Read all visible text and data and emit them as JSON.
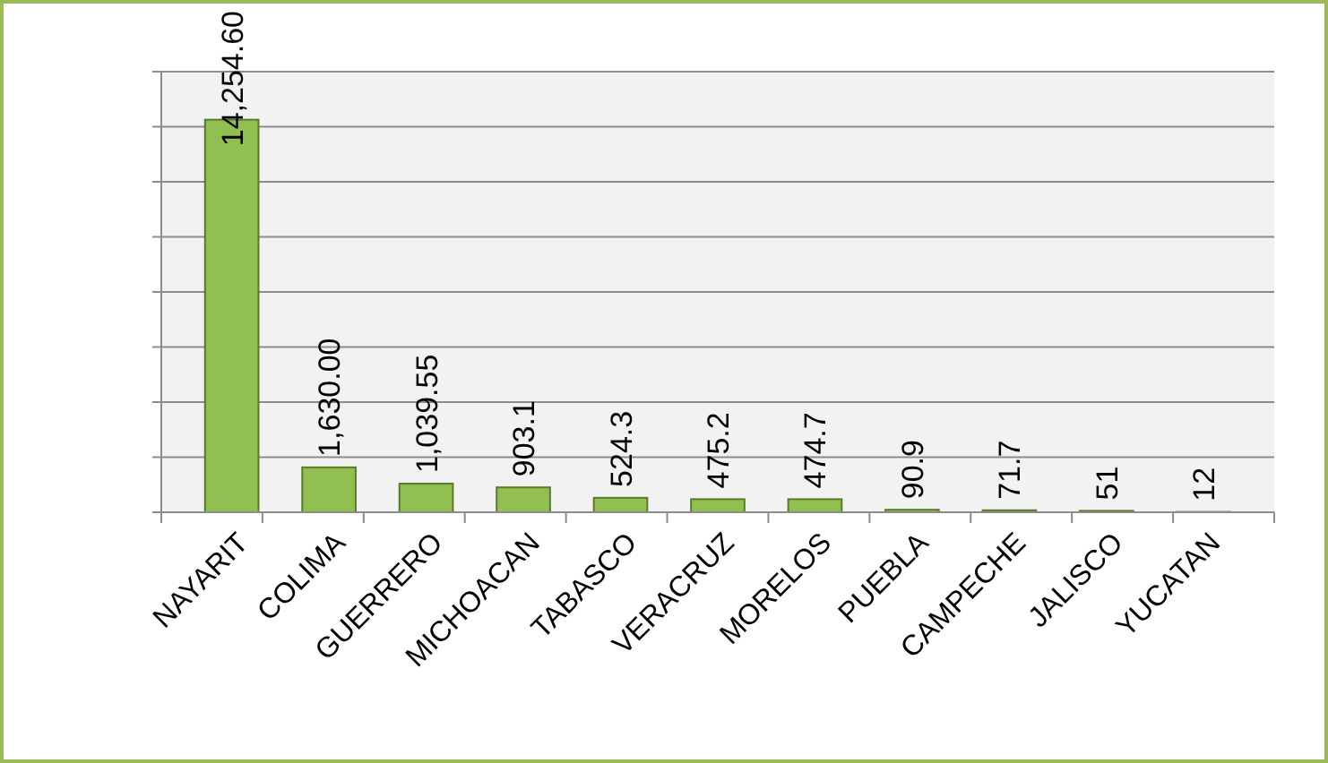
{
  "chart_data": {
    "type": "bar",
    "categories": [
      "NAYARIT",
      "COLIMA",
      "GUERRERO",
      "MICHOACAN",
      "TABASCO",
      "VERACRUZ",
      "MORELOS",
      "PUEBLA",
      "CAMPECHE",
      "JALISCO",
      "YUCATAN"
    ],
    "values": [
      14254.6,
      1630,
      1039.55,
      903.1,
      524.3,
      475.2,
      474.7,
      90.9,
      71.7,
      51,
      12
    ],
    "value_labels": [
      "14,254.60",
      "1,630.00",
      "1,039.55",
      "903.1",
      "524.3",
      "475.2",
      "474.7",
      "90.9",
      "71.7",
      "51",
      "12"
    ],
    "color": "#92c050",
    "ylim": [
      0,
      16000
    ],
    "yticks": [
      {
        "value": 0,
        "label": null
      },
      {
        "value": 2000,
        "label": null
      },
      {
        "value": 4000,
        "label": null
      },
      {
        "value": 6000,
        "label": null
      },
      {
        "value": 8000,
        "label": null
      },
      {
        "value": 10000,
        "label": null
      },
      {
        "value": 12000,
        "label": null
      },
      {
        "value": 14000,
        "label": null
      },
      {
        "value": 16000,
        "label": null
      }
    ],
    "grid": true,
    "tick_labels": "x"
  }
}
